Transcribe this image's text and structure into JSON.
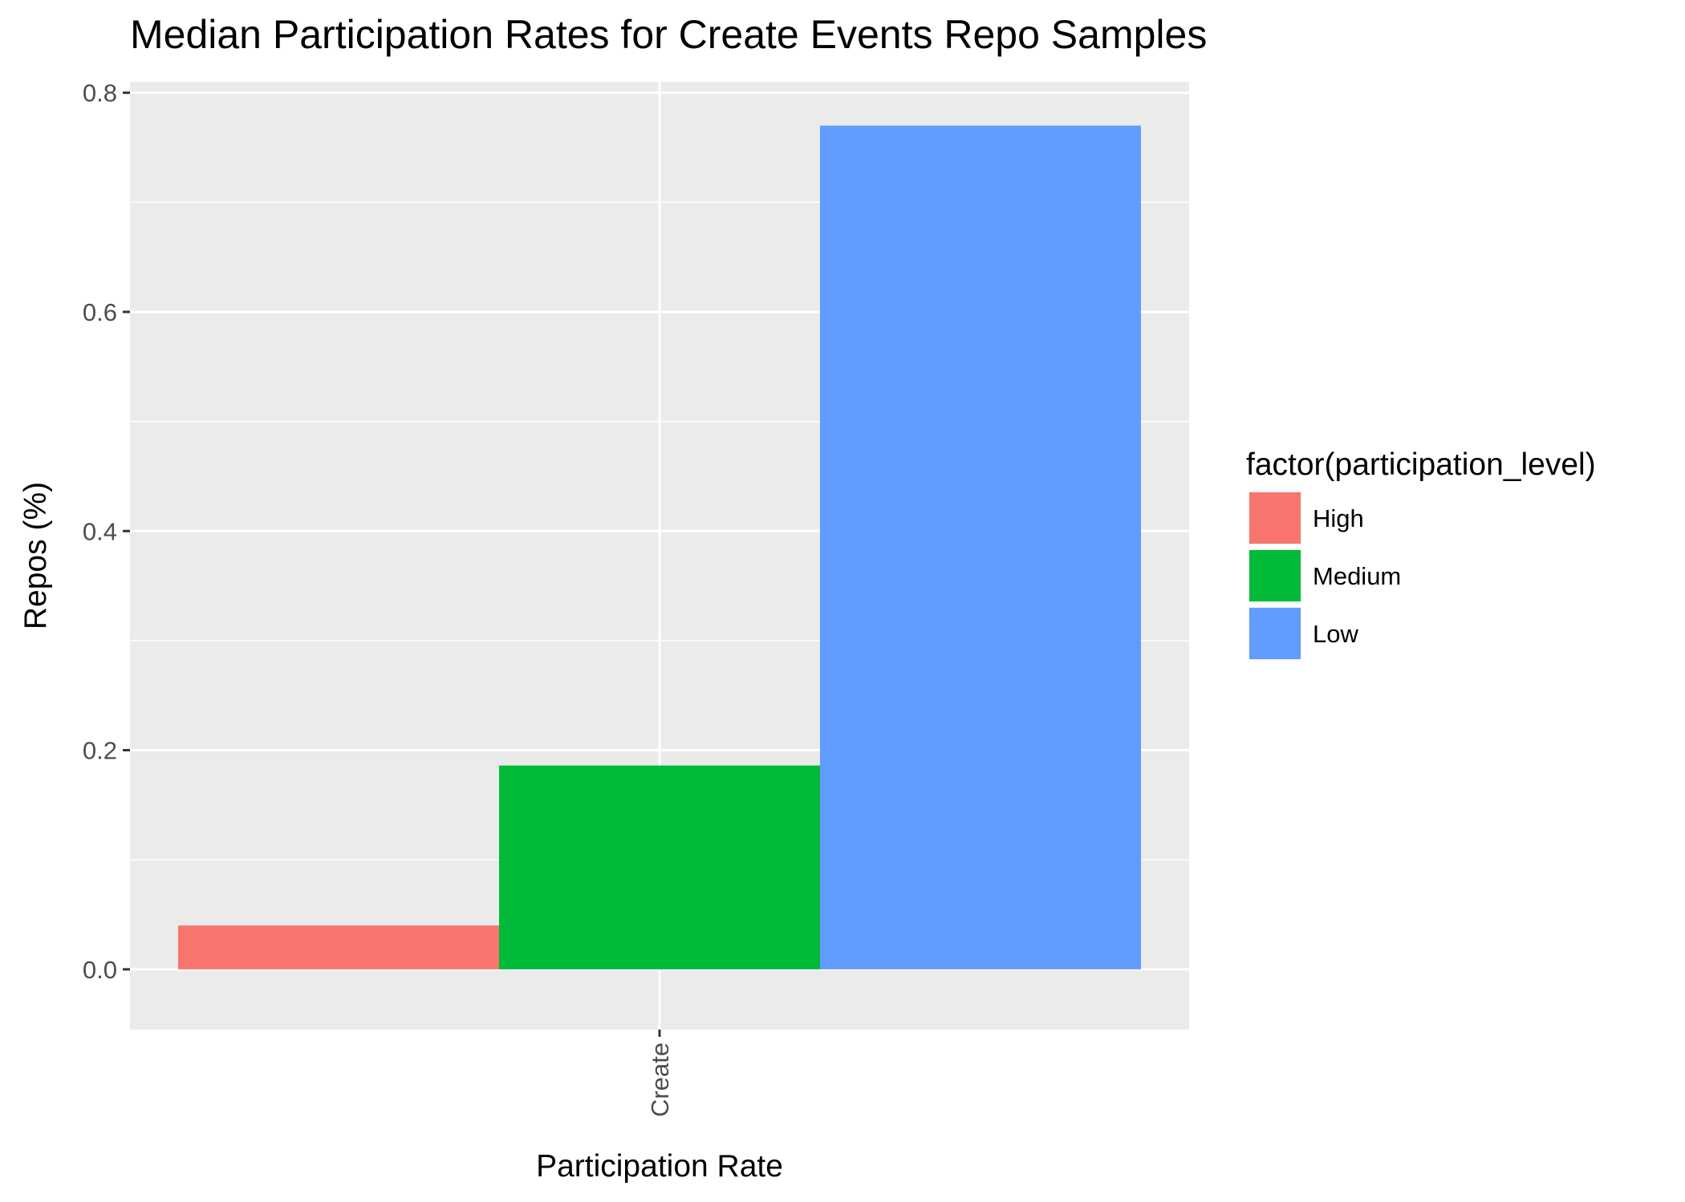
{
  "chart_data": {
    "type": "bar",
    "title": "Median Participation Rates for Create Events Repo Samples",
    "xlabel": "Participation Rate",
    "ylabel": "Repos (%)",
    "categories": [
      "Create"
    ],
    "ylim": [
      -0.055,
      0.81
    ],
    "yticks": [
      0.0,
      0.2,
      0.4,
      0.6,
      0.8
    ],
    "ytick_labels": [
      "0.0",
      "0.2",
      "0.4",
      "0.6",
      "0.8"
    ],
    "bar_layout": "dodge",
    "grid": true,
    "legend": {
      "title": "factor(participation_level)",
      "placement": "right"
    },
    "series": [
      {
        "name": "High",
        "color": "#F8766D",
        "values": [
          0.04
        ]
      },
      {
        "name": "Medium",
        "color": "#00BA38",
        "values": [
          0.186
        ]
      },
      {
        "name": "Low",
        "color": "#619CFF",
        "values": [
          0.77
        ]
      }
    ],
    "panel_background": "#EBEBEB",
    "gridline_color": "#FFFFFF"
  }
}
